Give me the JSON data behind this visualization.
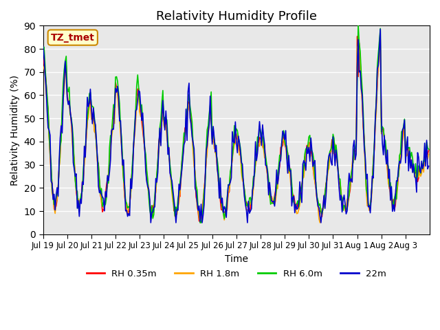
{
  "title": "Relativity Humidity Profile",
  "xlabel": "Time",
  "ylabel": "Relativity Humidity (%)",
  "ylim": [
    0,
    90
  ],
  "yticks": [
    0,
    10,
    20,
    30,
    40,
    50,
    60,
    70,
    80,
    90
  ],
  "colors": {
    "rh035": "#FF0000",
    "rh18": "#FFA500",
    "rh60": "#00CC00",
    "m22": "#0000CC"
  },
  "legend_labels": [
    "RH 0.35m",
    "RH 1.8m",
    "RH 6.0m",
    "22m"
  ],
  "annotation_text": "TZ_tmet",
  "annotation_bg": "#FFFFCC",
  "annotation_border": "#CC8800",
  "plot_bg": "#E8E8E8",
  "linewidth": 1.2,
  "n_days": 16,
  "pts_per_day": 24,
  "x_ticklabels": [
    "Jul 19",
    "Jul 20",
    "Jul 21",
    "Jul 22",
    "Jul 23",
    "Jul 24",
    "Jul 25",
    "Jul 26",
    "Jul 27",
    "Jul 28",
    "Jul 29",
    "Jul 30",
    "Jul 31",
    "Aug 1",
    "Aug 2",
    "Aug 3"
  ],
  "day_peaks": [
    75,
    60,
    53,
    65,
    54,
    50,
    57,
    42,
    42,
    42,
    38,
    39,
    38,
    85,
    47,
    36
  ],
  "day_mins": [
    12,
    13,
    12,
    10,
    9,
    10,
    6,
    9,
    10,
    13,
    10,
    8,
    11,
    11,
    12,
    25
  ]
}
